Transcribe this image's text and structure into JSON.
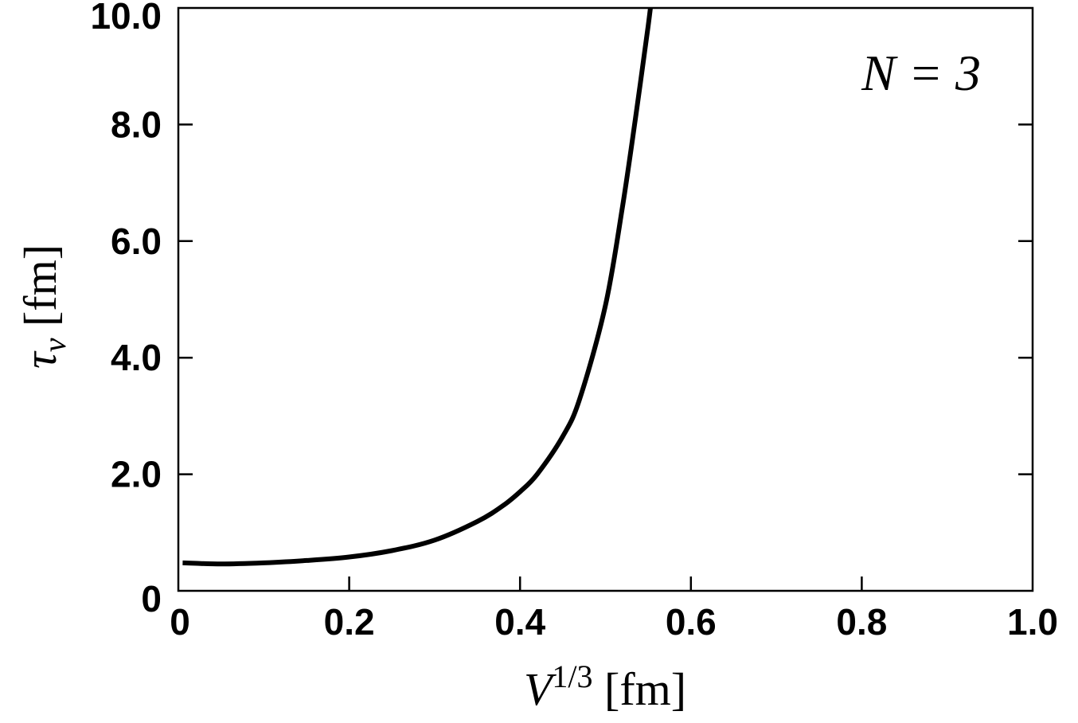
{
  "chart_data": {
    "type": "line",
    "title": "",
    "xlabel": {
      "main": "V",
      "sup": "1/3",
      "unit": " [fm]"
    },
    "ylabel": {
      "main": "τ",
      "sub": "v",
      "unit": " [fm]"
    },
    "annotation": "N = 3",
    "xlim": [
      0,
      1.0
    ],
    "ylim": [
      0,
      10.0
    ],
    "xticks": [
      0,
      0.2,
      0.4,
      0.6,
      0.8,
      1.0
    ],
    "xtick_labels": [
      "0",
      "0.2",
      "0.4",
      "0.6",
      "0.8",
      "1.0"
    ],
    "yticks": [
      0,
      2,
      4,
      6,
      8,
      10
    ],
    "ytick_labels": [
      "0",
      "2.0",
      "4.0",
      "6.0",
      "8.0",
      "10.0"
    ],
    "grid": false,
    "legend": false,
    "series": [
      {
        "color": "#000000",
        "x": [
          0.005,
          0.05,
          0.1,
          0.15,
          0.2,
          0.25,
          0.3,
          0.35,
          0.38,
          0.4,
          0.42,
          0.45,
          0.47,
          0.5,
          0.52,
          0.535,
          0.55,
          0.555
        ],
        "y": [
          0.48,
          0.46,
          0.48,
          0.52,
          0.58,
          0.69,
          0.87,
          1.19,
          1.46,
          1.7,
          2.0,
          2.65,
          3.3,
          4.9,
          6.6,
          8.1,
          9.7,
          10.3
        ]
      }
    ]
  }
}
